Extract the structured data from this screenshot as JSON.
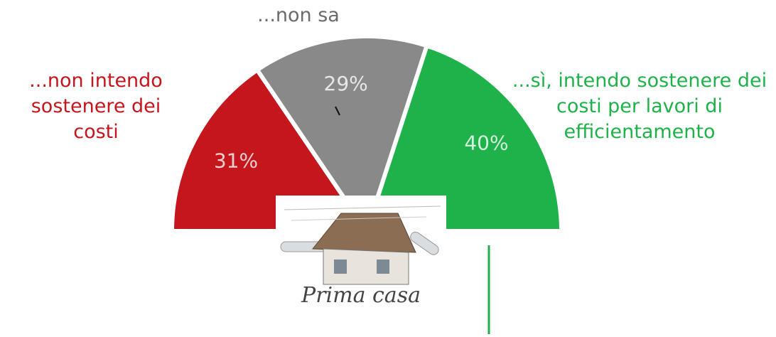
{
  "chart_data": {
    "type": "pie",
    "half": true,
    "categories": [
      "...non intendo sostenere dei costi",
      "...non sa",
      "...sì, intendo sostenere dei costi per lavori di efficientamento"
    ],
    "values": [
      31,
      29,
      40
    ],
    "value_labels": [
      "31%",
      "29%",
      "40%"
    ],
    "colors": [
      "#c4161c",
      "#898989",
      "#1fb24a"
    ],
    "label_colors": [
      "#c4161c",
      "#6b6b6b",
      "#1fb24a"
    ],
    "center_label": "Prima casa"
  }
}
